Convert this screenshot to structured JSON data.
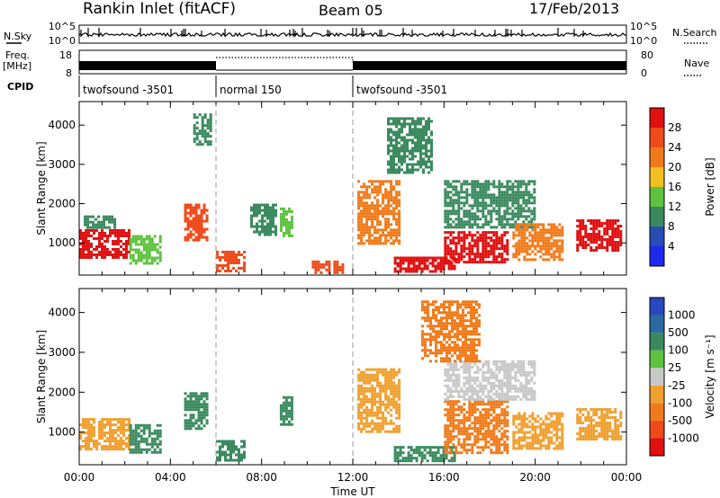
{
  "header": {
    "site": "Rankin Inlet (fitACF)",
    "beam": "Beam 05",
    "date": "17/Feb/2013"
  },
  "left_labels": {
    "nsky": "N.Sky",
    "freq_line1": "Freq.",
    "freq_line2": "[MHz]",
    "cpid": "CPID"
  },
  "right_labels": {
    "nsearch": "N.Search",
    "nave": "Nave"
  },
  "nsky_ticks": [
    "10^5",
    "10^0"
  ],
  "freq_ticks": [
    "18",
    "8"
  ],
  "nave_ticks": [
    "80",
    "0"
  ],
  "cpid_segments": [
    {
      "start_h": 0,
      "end_h": 6,
      "label": "twofsound -3501"
    },
    {
      "start_h": 6,
      "end_h": 12,
      "label": "normal 150"
    },
    {
      "start_h": 12,
      "end_h": 24,
      "label": "twofsound -3501"
    }
  ],
  "chart_data": [
    {
      "type": "heatmap",
      "name": "power",
      "ylabel": "Slant Range [km]",
      "xlabel": "",
      "xlim": [
        0,
        24
      ],
      "ylim": [
        180,
        4600
      ],
      "yticks": [
        1000,
        2000,
        3000,
        4000
      ],
      "colorbar": {
        "label": "Power [dB]",
        "tick_labels": [
          "4",
          "8",
          "12",
          "16",
          "20",
          "24",
          "28"
        ],
        "colors": [
          "#1c28ee",
          "#284bb4",
          "#3a8a5e",
          "#5ec23f",
          "#f0c020",
          "#f07a1a",
          "#ee4a1a",
          "#e01010"
        ]
      },
      "echo_regions": [
        {
          "t": [
            0.0,
            2.2
          ],
          "r": [
            600,
            1350
          ],
          "v": 28
        },
        {
          "t": [
            2.2,
            3.6
          ],
          "r": [
            500,
            1200
          ],
          "v": 14
        },
        {
          "t": [
            0.2,
            1.6
          ],
          "r": [
            1400,
            1700
          ],
          "v": 10
        },
        {
          "t": [
            4.6,
            5.6
          ],
          "r": [
            1100,
            2000
          ],
          "v": 24
        },
        {
          "t": [
            5.0,
            5.8
          ],
          "r": [
            3500,
            4300
          ],
          "v": 8
        },
        {
          "t": [
            6.0,
            7.2
          ],
          "r": [
            300,
            800
          ],
          "v": 26
        },
        {
          "t": [
            7.5,
            8.6
          ],
          "r": [
            1200,
            2000
          ],
          "v": 10
        },
        {
          "t": [
            8.8,
            9.3
          ],
          "r": [
            1200,
            1900
          ],
          "v": 14
        },
        {
          "t": [
            10.2,
            11.6
          ],
          "r": [
            250,
            550
          ],
          "v": 26
        },
        {
          "t": [
            12.2,
            14.0
          ],
          "r": [
            1000,
            2600
          ],
          "v": 20
        },
        {
          "t": [
            13.8,
            16.5
          ],
          "r": [
            250,
            650
          ],
          "v": 28
        },
        {
          "t": [
            16.0,
            18.8
          ],
          "r": [
            500,
            1300
          ],
          "v": 28
        },
        {
          "t": [
            16.0,
            20.0
          ],
          "r": [
            1400,
            2600
          ],
          "v": 10
        },
        {
          "t": [
            19.0,
            21.2
          ],
          "r": [
            600,
            1500
          ],
          "v": 22
        },
        {
          "t": [
            21.8,
            23.8
          ],
          "r": [
            800,
            1600
          ],
          "v": 28
        },
        {
          "t": [
            13.5,
            15.5
          ],
          "r": [
            2800,
            4200
          ],
          "v": 10
        }
      ]
    },
    {
      "type": "heatmap",
      "name": "velocity",
      "ylabel": "Slant Range [km]",
      "xlabel": "Time UT",
      "xlim": [
        0,
        24
      ],
      "ylim": [
        180,
        4600
      ],
      "yticks": [
        1000,
        2000,
        3000,
        4000
      ],
      "xtick_labels": [
        "00:00",
        "04:00",
        "08:00",
        "12:00",
        "16:00",
        "20:00",
        "00:00"
      ],
      "colorbar": {
        "label": "Velocity [m s⁻¹]",
        "tick_labels": [
          "1000",
          "500",
          "100",
          "25",
          "-25",
          "-100",
          "-500",
          "-1000"
        ],
        "colors": [
          "#2848c0",
          "#2a6aa0",
          "#3a8a5e",
          "#5ec23f",
          "#c8c8c8",
          "#f0a030",
          "#f07a1a",
          "#ee4a1a",
          "#e01010"
        ]
      },
      "echo_regions": [
        {
          "t": [
            0.0,
            2.2
          ],
          "r": [
            600,
            1350
          ],
          "v": -100
        },
        {
          "t": [
            2.2,
            3.6
          ],
          "r": [
            500,
            1200
          ],
          "v": 100
        },
        {
          "t": [
            4.6,
            5.6
          ],
          "r": [
            1100,
            2000
          ],
          "v": 100
        },
        {
          "t": [
            6.0,
            7.2
          ],
          "r": [
            300,
            800
          ],
          "v": 100
        },
        {
          "t": [
            8.8,
            9.3
          ],
          "r": [
            1200,
            1900
          ],
          "v": 100
        },
        {
          "t": [
            12.2,
            14.0
          ],
          "r": [
            1000,
            2600
          ],
          "v": -100
        },
        {
          "t": [
            13.8,
            16.5
          ],
          "r": [
            250,
            650
          ],
          "v": 100
        },
        {
          "t": [
            16.0,
            18.8
          ],
          "r": [
            500,
            1800
          ],
          "v": -500
        },
        {
          "t": [
            16.0,
            20.0
          ],
          "r": [
            1800,
            2800
          ],
          "v": -25
        },
        {
          "t": [
            19.0,
            21.2
          ],
          "r": [
            600,
            1500
          ],
          "v": -100
        },
        {
          "t": [
            21.8,
            23.8
          ],
          "r": [
            800,
            1600
          ],
          "v": -100
        },
        {
          "t": [
            15.0,
            17.5
          ],
          "r": [
            2800,
            4300
          ],
          "v": -500
        }
      ]
    }
  ]
}
